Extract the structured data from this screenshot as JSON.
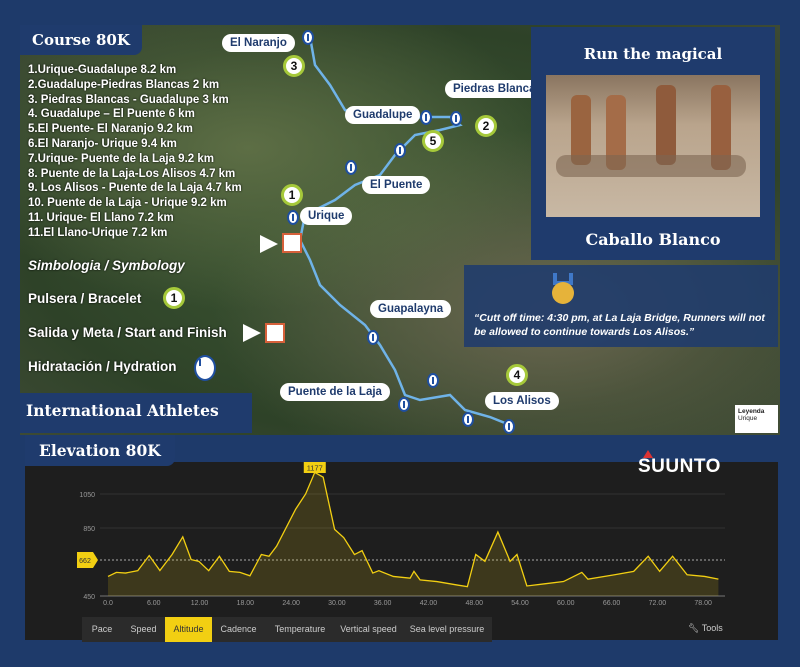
{
  "course": {
    "title": "Course 80K",
    "items": [
      "1.Urique-Guadalupe 8.2 km",
      "2.Guadalupe-Piedras Blancas 2 km",
      "3. Piedras Blancas - Guadalupe 3 km",
      "4. Guadalupe – El Puente 6 km",
      "5.El Puente- El Naranjo 9.2 km",
      "6.El Naranjo- Urique 9.4 km",
      "7.Urique- Puente de la Laja 9.2 km",
      "8. Puente de la Laja-Los Alisos 4.7 km",
      "9. Los Alisos - Puente de la Laja 4.7 km",
      "10. Puente de la Laja - Urique 9.2 km",
      "11. Urique- El Llano 7.2 km",
      "11.El Llano-Urique 7.2 km"
    ]
  },
  "symbology": {
    "title": "Simbologia / Symbology",
    "bracelet": "Pulsera / Bracelet",
    "bracelet_num": "1",
    "start": "Salida y Meta / Start and Finish",
    "hydration": "Hidratación / Hydration"
  },
  "intl": "International Athletes",
  "promo": {
    "top": "Run the magical",
    "bottom": "Caballo Blanco"
  },
  "cutoff": "“Cutt off time: 4:30 pm, at La Laja Bridge, Runners will not be allowed to continue towards Los Alisos.”",
  "map": {
    "places": {
      "naranjo": "El Naranjo",
      "piedras": "Piedras Blancas",
      "guadalupe": "Guadalupe",
      "puente": "El Puente",
      "urique": "Urique",
      "guapalayna": "Guapalayna",
      "laja": "Puente de la Laja",
      "alisos": "Los Alisos"
    },
    "numbers": {
      "n1": "1",
      "n2": "2",
      "n3": "3",
      "n4": "4",
      "n5": "5"
    },
    "legend": {
      "title": "Leyenda",
      "item": "Urique"
    }
  },
  "elevation": {
    "title": "Elevation 80K",
    "brand": "SUUNTO",
    "tools": "Tools",
    "tabs": [
      "Pace",
      "Speed",
      "Altitude",
      "Cadence",
      "Temperature",
      "Vertical speed",
      "Sea level pressure"
    ],
    "active_tab": "Altitude"
  },
  "colors": {
    "navy": "#1f3b6d",
    "accent": "#f2cf12",
    "bracelet": "#a6c93a"
  },
  "chart_data": {
    "type": "area",
    "xlim": [
      0,
      80
    ],
    "ylim": [
      450,
      1177
    ],
    "x_ticks": [
      "0.0",
      "6.00",
      "12.00",
      "18.00",
      "24.00",
      "30.00",
      "36.00",
      "42.00",
      "48.00",
      "54.00",
      "60.00",
      "66.00",
      "72.00",
      "78.00"
    ],
    "y_ticks": [
      "450",
      "850",
      "1050"
    ],
    "max_label": "1177",
    "ref_label": "662",
    "ref_value": 662,
    "x": [
      0,
      1.1,
      2.3,
      3.9,
      5.4,
      6.8,
      8.4,
      9.8,
      10.9,
      11.9,
      13.2,
      14.6,
      15.9,
      17.3,
      18.6,
      20.1,
      21.1,
      22.1,
      24.6,
      25.9,
      27.1,
      28.2,
      29.7,
      30.9,
      32.3,
      33.3,
      34.7,
      35.5,
      37.4,
      39.6,
      40.1,
      40.9,
      43.1,
      45.7,
      47.1,
      48.2,
      49.4,
      51.1,
      52.7,
      53.6,
      54.9,
      57.1,
      59.7,
      62.1,
      62.9,
      66.4,
      68.9,
      70.8,
      72.3,
      74.0,
      75.9,
      78.2,
      80.0
    ],
    "y": [
      565,
      589,
      585,
      599,
      688,
      600,
      694,
      798,
      664,
      654,
      599,
      684,
      595,
      589,
      569,
      694,
      684,
      743,
      961,
      1050,
      1177,
      1149,
      842,
      793,
      694,
      717,
      585,
      599,
      565,
      555,
      595,
      545,
      535,
      515,
      505,
      694,
      654,
      826,
      654,
      694,
      509,
      521,
      535,
      589,
      549,
      575,
      595,
      684,
      595,
      684,
      575,
      565,
      549
    ]
  }
}
